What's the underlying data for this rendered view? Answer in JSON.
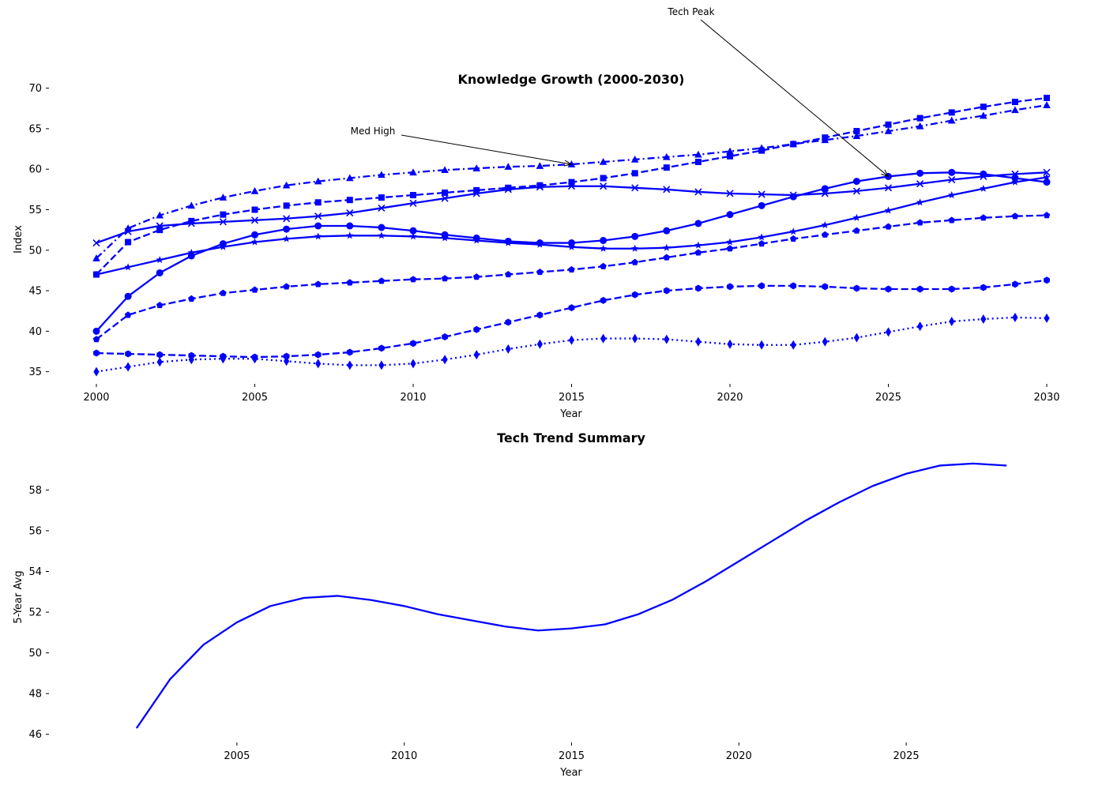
{
  "chart_data": [
    {
      "type": "line",
      "title": "Knowledge Growth (2000-2030)",
      "xlabel": "Year",
      "ylabel": "Index",
      "xlim": [
        2000,
        2030
      ],
      "ylim": [
        33.5,
        72.5
      ],
      "xticks": [
        2000,
        2005,
        2010,
        2015,
        2020,
        2025,
        2030
      ],
      "yticks": [
        35,
        40,
        45,
        50,
        55,
        60,
        65,
        70
      ],
      "grid": false,
      "legend": "none",
      "color": "#0000ff",
      "x": [
        2000,
        2001,
        2002,
        2003,
        2004,
        2005,
        2006,
        2007,
        2008,
        2009,
        2010,
        2011,
        2012,
        2013,
        2014,
        2015,
        2016,
        2017,
        2018,
        2019,
        2020,
        2021,
        2022,
        2023,
        2024,
        2025,
        2026,
        2027,
        2028,
        2029,
        2030
      ],
      "series": [
        {
          "marker": "circle",
          "dash": "solid",
          "values": [
            40.0,
            44.3,
            47.2,
            49.3,
            50.8,
            51.9,
            52.6,
            53.0,
            53.0,
            52.8,
            52.4,
            51.9,
            51.5,
            51.1,
            50.9,
            50.9,
            51.2,
            51.7,
            52.4,
            53.3,
            54.4,
            55.5,
            56.6,
            57.6,
            58.5,
            59.1,
            59.5,
            59.6,
            59.4,
            58.9,
            58.4
          ]
        },
        {
          "marker": "square",
          "dash": "dashed",
          "values": [
            47.0,
            51.0,
            52.5,
            53.6,
            54.4,
            55.0,
            55.5,
            55.9,
            56.2,
            56.5,
            56.8,
            57.1,
            57.4,
            57.7,
            58.0,
            58.4,
            58.9,
            59.5,
            60.2,
            60.9,
            61.6,
            62.3,
            63.1,
            63.9,
            64.7,
            65.5,
            66.3,
            67.0,
            67.7,
            68.3,
            68.8
          ]
        },
        {
          "marker": "triangle",
          "dash": "dashdot",
          "values": [
            49.0,
            52.7,
            54.3,
            55.5,
            56.5,
            57.3,
            58.0,
            58.5,
            58.9,
            59.3,
            59.6,
            59.9,
            60.1,
            60.3,
            60.4,
            60.6,
            60.9,
            61.2,
            61.5,
            61.8,
            62.2,
            62.6,
            63.1,
            63.6,
            64.1,
            64.7,
            65.3,
            66.0,
            66.6,
            67.3,
            67.9
          ]
        },
        {
          "marker": "x",
          "dash": "solid",
          "values": [
            50.9,
            52.3,
            53.0,
            53.3,
            53.5,
            53.7,
            53.9,
            54.2,
            54.6,
            55.2,
            55.8,
            56.4,
            57.0,
            57.5,
            57.8,
            57.9,
            57.9,
            57.7,
            57.5,
            57.2,
            57.0,
            56.9,
            56.8,
            57.0,
            57.3,
            57.7,
            58.2,
            58.7,
            59.1,
            59.4,
            59.6
          ]
        },
        {
          "marker": "star",
          "dash": "solid",
          "values": [
            47.0,
            47.9,
            48.8,
            49.7,
            50.4,
            51.0,
            51.4,
            51.7,
            51.8,
            51.8,
            51.7,
            51.5,
            51.2,
            50.9,
            50.7,
            50.4,
            50.2,
            50.2,
            50.3,
            50.6,
            51.0,
            51.6,
            52.3,
            53.1,
            54.0,
            54.9,
            55.9,
            56.8,
            57.6,
            58.4,
            59.0
          ]
        },
        {
          "marker": "pentagon",
          "dash": "dashed",
          "values": [
            39.0,
            42.0,
            43.2,
            44.0,
            44.7,
            45.1,
            45.5,
            45.8,
            46.0,
            46.2,
            46.4,
            46.5,
            46.7,
            47.0,
            47.3,
            47.6,
            48.0,
            48.5,
            49.1,
            49.7,
            50.2,
            50.8,
            51.4,
            51.9,
            52.4,
            52.9,
            53.4,
            53.7,
            54.0,
            54.2,
            54.3
          ]
        },
        {
          "marker": "hexagon",
          "dash": "dashed",
          "values": [
            37.3,
            37.2,
            37.1,
            37.0,
            36.9,
            36.8,
            36.9,
            37.1,
            37.4,
            37.9,
            38.5,
            39.3,
            40.2,
            41.1,
            42.0,
            42.9,
            43.8,
            44.5,
            45.0,
            45.3,
            45.5,
            45.6,
            45.6,
            45.5,
            45.3,
            45.2,
            45.2,
            45.2,
            45.4,
            45.8,
            46.3
          ]
        },
        {
          "marker": "diamond",
          "dash": "dotted",
          "values": [
            35.0,
            35.6,
            36.2,
            36.5,
            36.6,
            36.6,
            36.3,
            36.0,
            35.8,
            35.8,
            36.0,
            36.5,
            37.1,
            37.8,
            38.4,
            38.9,
            39.1,
            39.1,
            39.0,
            38.7,
            38.4,
            38.3,
            38.3,
            38.7,
            39.2,
            39.9,
            40.6,
            41.2,
            41.5,
            41.7,
            41.6
          ]
        }
      ],
      "annotations": [
        {
          "text": "Med High",
          "point_x": 2015,
          "point_y": 60.6
        },
        {
          "text": "Tech Peak",
          "point_x": 2025,
          "point_y": 59.1
        }
      ]
    },
    {
      "type": "line",
      "title": "Tech Trend Summary",
      "xlabel": "Year",
      "ylabel": "5-Year Avg",
      "xlim": [
        2000.8,
        2029.2
      ],
      "ylim": [
        45.6,
        59.8
      ],
      "xticks": [
        2005,
        2010,
        2015,
        2020,
        2025
      ],
      "yticks": [
        46,
        48,
        50,
        52,
        54,
        56,
        58
      ],
      "grid": false,
      "legend": "none",
      "color": "#0000ff",
      "x": [
        2002,
        2003,
        2004,
        2005,
        2006,
        2007,
        2008,
        2009,
        2010,
        2011,
        2012,
        2013,
        2014,
        2015,
        2016,
        2017,
        2018,
        2019,
        2020,
        2021,
        2022,
        2023,
        2024,
        2025,
        2026,
        2027,
        2028
      ],
      "series": [
        {
          "marker": "none",
          "dash": "solid",
          "values": [
            46.3,
            48.7,
            50.4,
            51.5,
            52.3,
            52.7,
            52.8,
            52.6,
            52.3,
            51.9,
            51.6,
            51.3,
            51.1,
            51.2,
            51.4,
            51.9,
            52.6,
            53.5,
            54.5,
            55.5,
            56.5,
            57.4,
            58.2,
            58.8,
            59.2,
            59.3,
            59.2
          ]
        }
      ]
    }
  ]
}
